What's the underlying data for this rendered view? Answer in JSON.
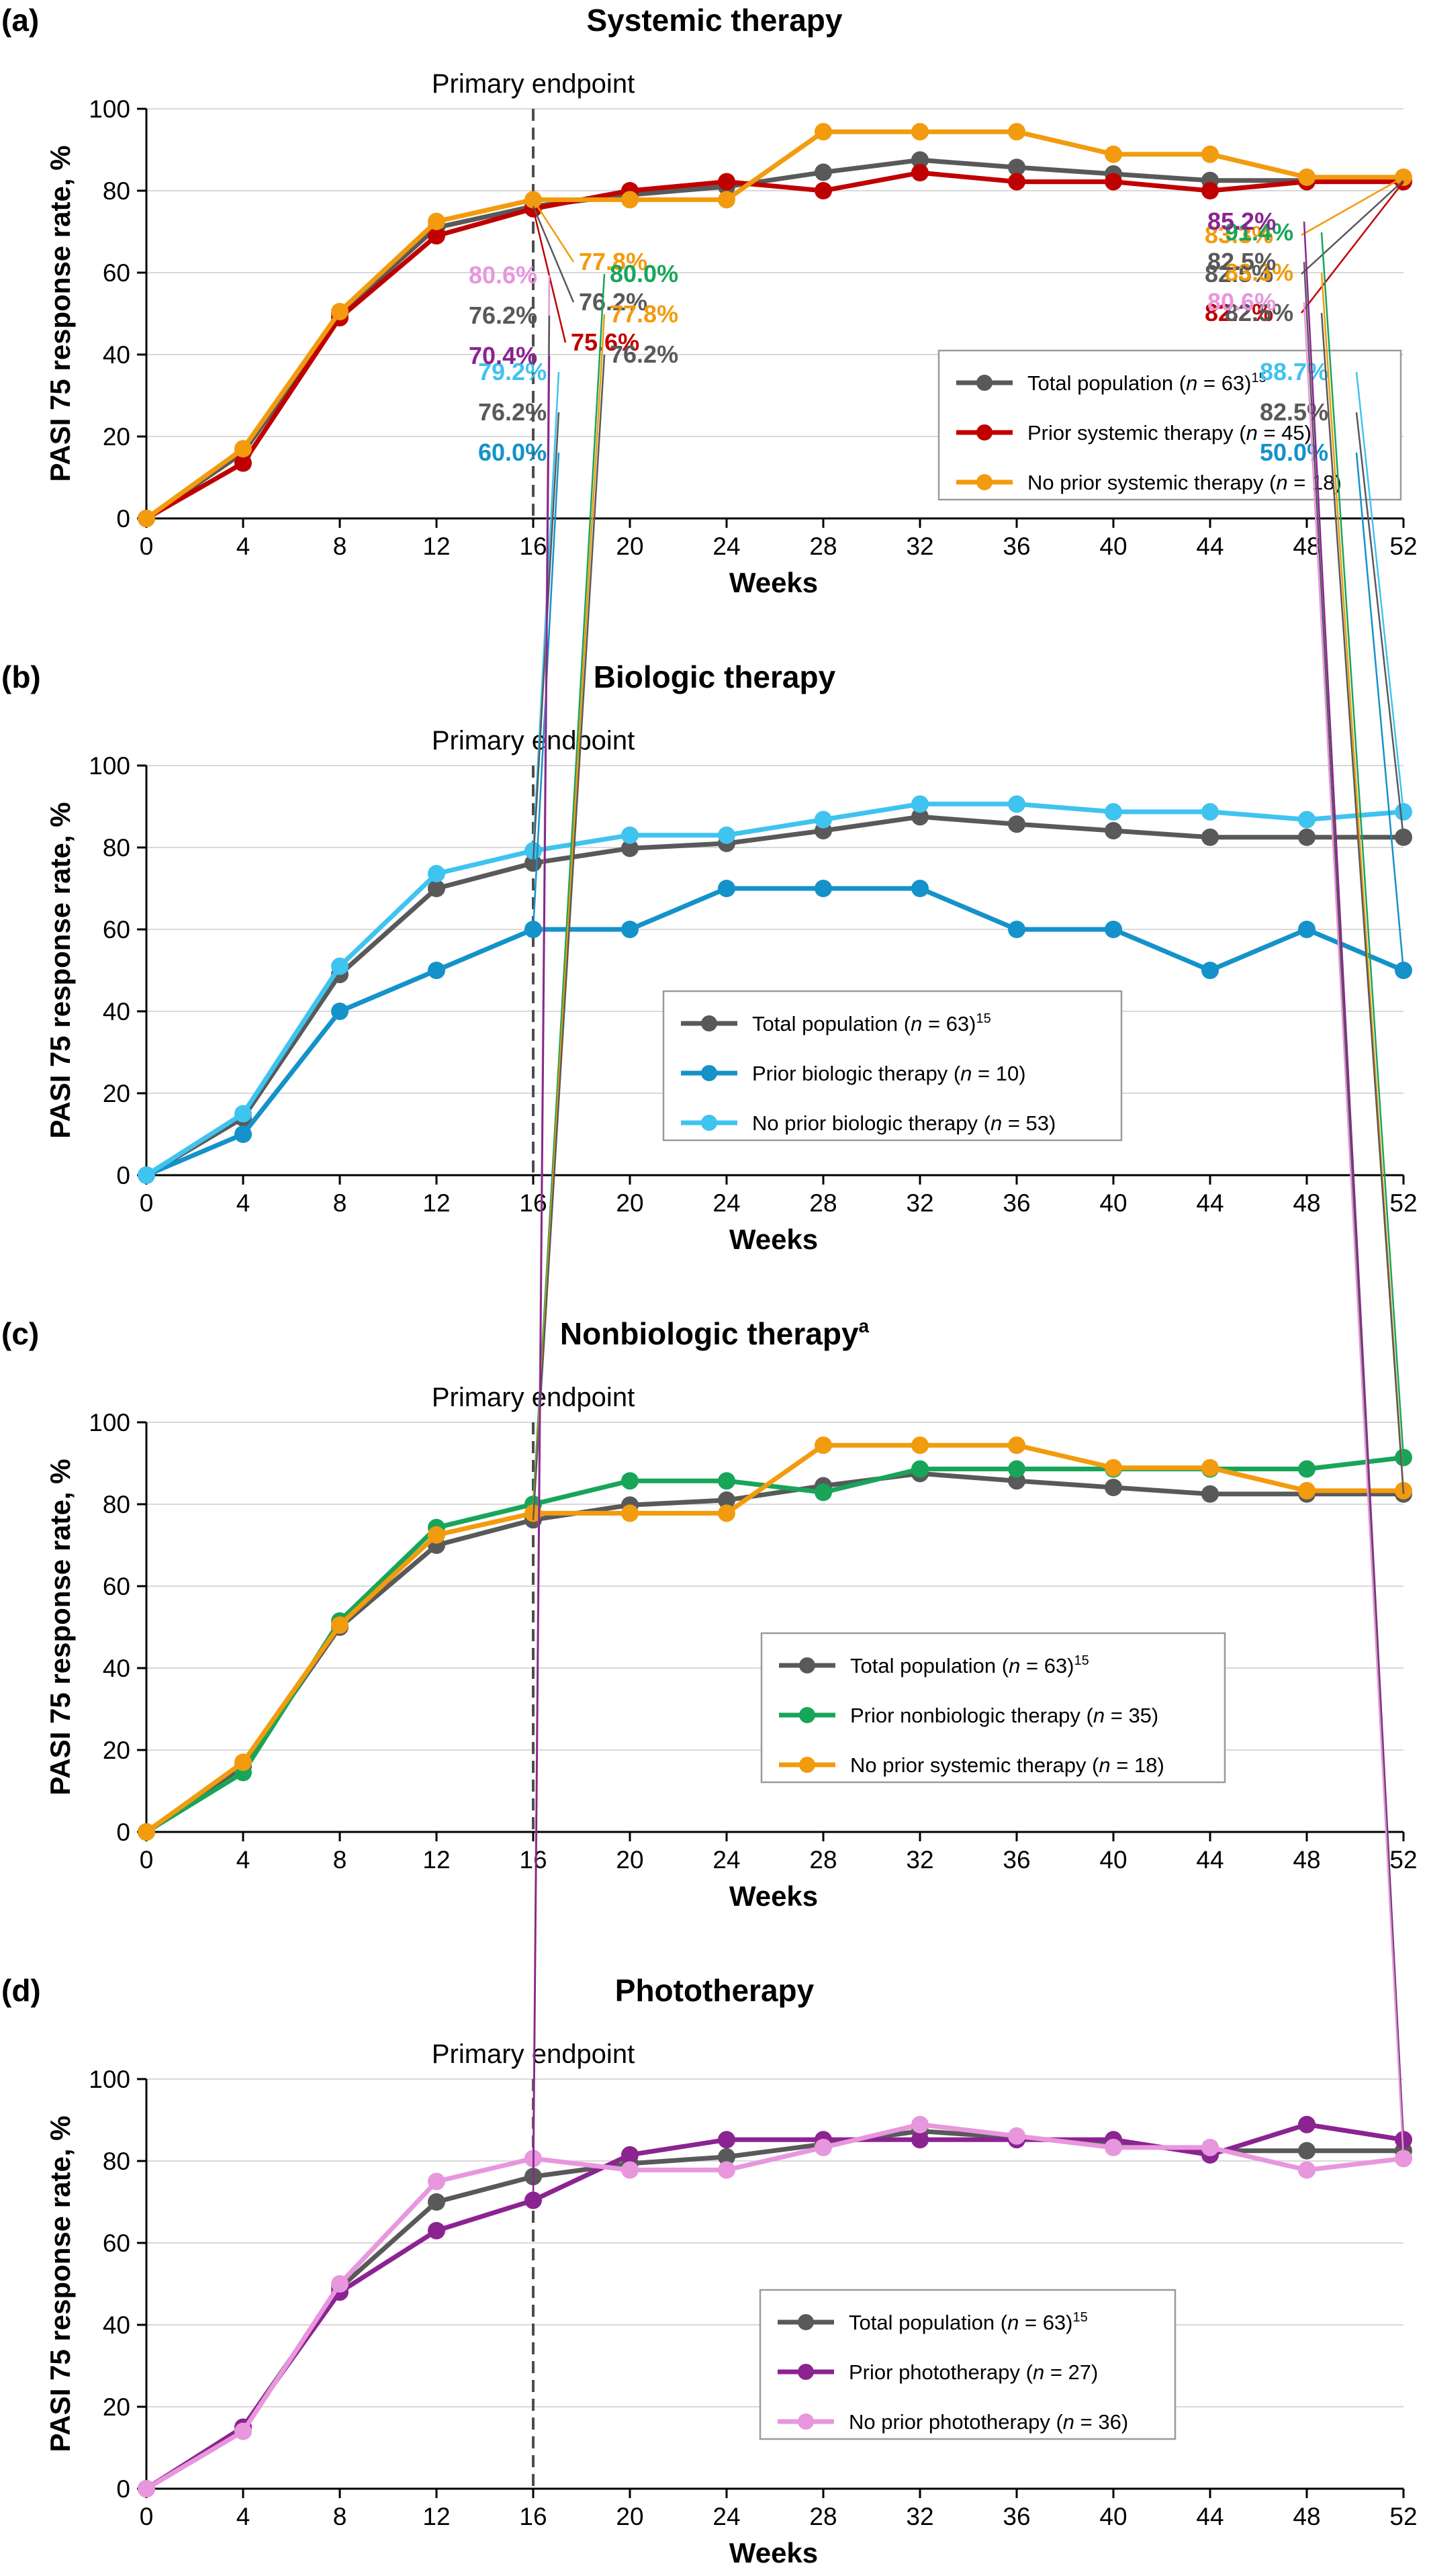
{
  "chart_data": [
    {
      "type": "line",
      "panel": "(a)",
      "title": "Systemic therapy",
      "title_sup": "",
      "xlabel": "Weeks",
      "ylabel": "PASI 75 response rate, %",
      "xlim": [
        0,
        52
      ],
      "ylim": [
        0,
        100
      ],
      "xticks": [
        "0",
        "4",
        "8",
        "12",
        "16",
        "20",
        "24",
        "28",
        "32",
        "36",
        "40",
        "44",
        "48",
        "52"
      ],
      "yticks": [
        "0",
        "20",
        "40",
        "60",
        "80",
        "100"
      ],
      "grid": "horizontal",
      "endpoint": {
        "week": 16,
        "label": "Primary endpoint"
      },
      "x": [
        0,
        4,
        8,
        12,
        16,
        20,
        24,
        28,
        32,
        36,
        40,
        44,
        48,
        52
      ],
      "series": [
        {
          "name_prefix": "Total population (",
          "name_n": "n",
          "name_suffix": " = 63)",
          "name_sup": "15",
          "color": "#595959",
          "values": [
            0,
            16,
            50,
            71,
            76.2,
            79,
            81,
            84.5,
            87.5,
            85.7,
            84.1,
            82.5,
            82.5,
            82.5
          ]
        },
        {
          "name_prefix": "Prior systemic therapy (",
          "name_n": "n",
          "name_suffix": " = 45)",
          "name_sup": "",
          "color": "#c00000",
          "values": [
            0,
            13.5,
            49,
            69,
            75.6,
            80,
            82.2,
            80,
            84.4,
            82.2,
            82.2,
            80,
            82.2,
            82.2
          ]
        },
        {
          "name_prefix": "No prior systemic therapy (",
          "name_n": "n",
          "name_suffix": " = 18)",
          "name_sup": "",
          "color": "#f29b0e",
          "values": [
            0,
            17,
            50.5,
            72.5,
            77.8,
            77.8,
            77.8,
            94.4,
            94.4,
            94.4,
            88.9,
            88.9,
            83.3,
            83.3
          ]
        }
      ],
      "callouts_16": [
        {
          "text": "77.8%",
          "color": "#f29b0e"
        },
        {
          "text": "76.2%",
          "color": "#595959"
        },
        {
          "text": "75.6%",
          "color": "#c00000"
        }
      ],
      "callouts_52": [
        {
          "text": "83.3%",
          "color": "#f29b0e"
        },
        {
          "text": "82.5%",
          "color": "#595959"
        },
        {
          "text": "82.2%",
          "color": "#c00000"
        }
      ]
    },
    {
      "type": "line",
      "panel": "(b)",
      "title": "Biologic therapy",
      "title_sup": "",
      "xlabel": "Weeks",
      "ylabel": "PASI 75 response rate, %",
      "xlim": [
        0,
        52
      ],
      "ylim": [
        0,
        100
      ],
      "xticks": [
        "0",
        "4",
        "8",
        "12",
        "16",
        "20",
        "24",
        "28",
        "32",
        "36",
        "40",
        "44",
        "48",
        "52"
      ],
      "yticks": [
        "0",
        "20",
        "40",
        "60",
        "80",
        "100"
      ],
      "grid": "horizontal",
      "endpoint": {
        "week": 16,
        "label": "Primary endpoint"
      },
      "x": [
        0,
        4,
        8,
        12,
        16,
        20,
        24,
        28,
        32,
        36,
        40,
        44,
        48,
        52
      ],
      "series": [
        {
          "name_prefix": "Total population (",
          "name_n": "n",
          "name_suffix": " = 63)",
          "name_sup": "15",
          "color": "#595959",
          "values": [
            0,
            14,
            49,
            70,
            76.2,
            79.8,
            81,
            84.1,
            87.5,
            85.7,
            84.1,
            82.5,
            82.5,
            82.5
          ]
        },
        {
          "name_prefix": "Prior biologic therapy (",
          "name_n": "n",
          "name_suffix": " = 10)",
          "name_sup": "",
          "color": "#1492c9",
          "values": [
            0,
            10,
            40,
            50,
            60,
            60,
            70,
            70,
            70,
            60,
            60,
            50,
            60,
            50
          ]
        },
        {
          "name_prefix": "No prior biologic therapy (",
          "name_n": "n",
          "name_suffix": " = 53)",
          "name_sup": "",
          "color": "#3fc3ef",
          "values": [
            0,
            15,
            51,
            73.6,
            79.2,
            83,
            83,
            86.8,
            90.6,
            90.6,
            88.7,
            88.7,
            86.8,
            88.7
          ]
        }
      ],
      "callouts_16": [
        {
          "text": "79.2%",
          "color": "#3fc3ef"
        },
        {
          "text": "76.2%",
          "color": "#595959"
        },
        {
          "text": "60.0%",
          "color": "#1492c9"
        }
      ],
      "callouts_52": [
        {
          "text": "88.7%",
          "color": "#3fc3ef"
        },
        {
          "text": "82.5%",
          "color": "#595959"
        },
        {
          "text": "50.0%",
          "color": "#1492c9"
        }
      ]
    },
    {
      "type": "line",
      "panel": "(c)",
      "title": "Nonbiologic therapy",
      "title_sup": "a",
      "xlabel": "Weeks",
      "ylabel": "PASI 75 response rate, %",
      "xlim": [
        0,
        52
      ],
      "ylim": [
        0,
        100
      ],
      "xticks": [
        "0",
        "4",
        "8",
        "12",
        "16",
        "20",
        "24",
        "28",
        "32",
        "36",
        "40",
        "44",
        "48",
        "52"
      ],
      "yticks": [
        "0",
        "20",
        "40",
        "60",
        "80",
        "100"
      ],
      "grid": "horizontal",
      "endpoint": {
        "week": 16,
        "label": "Primary endpoint"
      },
      "x": [
        0,
        4,
        8,
        12,
        16,
        20,
        24,
        28,
        32,
        36,
        40,
        44,
        48,
        52
      ],
      "series": [
        {
          "name_prefix": "Total population (",
          "name_n": "n",
          "name_suffix": " = 63)",
          "name_sup": "15",
          "color": "#595959",
          "values": [
            0,
            16,
            50,
            70,
            76.2,
            79.8,
            81,
            84.5,
            87.5,
            85.7,
            84.1,
            82.5,
            82.5,
            82.5
          ]
        },
        {
          "name_prefix": "Prior nonbiologic therapy (",
          "name_n": "n",
          "name_suffix": " = 35)",
          "name_sup": "",
          "color": "#18a55a",
          "values": [
            0,
            14.5,
            51.5,
            74.3,
            80,
            85.7,
            85.7,
            82.9,
            88.6,
            88.6,
            88.6,
            88.6,
            88.6,
            91.4
          ]
        },
        {
          "name_prefix": "No prior systemic therapy (",
          "name_n": "n",
          "name_suffix": " = 18)",
          "name_sup": "",
          "color": "#f29b0e",
          "values": [
            0,
            17,
            50.5,
            72.5,
            77.8,
            77.8,
            77.8,
            94.4,
            94.4,
            94.4,
            88.9,
            88.9,
            83.3,
            83.3
          ]
        }
      ],
      "callouts_16": [
        {
          "text": "80.0%",
          "color": "#18a55a"
        },
        {
          "text": "77.8%",
          "color": "#f29b0e"
        },
        {
          "text": "76.2%",
          "color": "#595959"
        }
      ],
      "callouts_52": [
        {
          "text": "91.4%",
          "color": "#18a55a"
        },
        {
          "text": "83.3%",
          "color": "#f29b0e"
        },
        {
          "text": "82.5%",
          "color": "#595959"
        }
      ]
    },
    {
      "type": "line",
      "panel": "(d)",
      "title": "Phototherapy",
      "title_sup": "",
      "xlabel": "Weeks",
      "ylabel": "PASI 75 response rate, %",
      "xlim": [
        0,
        52
      ],
      "ylim": [
        0,
        100
      ],
      "xticks": [
        "0",
        "4",
        "8",
        "12",
        "16",
        "20",
        "24",
        "28",
        "32",
        "36",
        "40",
        "44",
        "48",
        "52"
      ],
      "yticks": [
        "0",
        "20",
        "40",
        "60",
        "80",
        "100"
      ],
      "grid": "horizontal",
      "endpoint": {
        "week": 16,
        "label": "Primary endpoint"
      },
      "x": [
        0,
        4,
        8,
        12,
        16,
        20,
        24,
        28,
        32,
        36,
        40,
        44,
        48,
        52
      ],
      "series": [
        {
          "name_prefix": "Total population (",
          "name_n": "n",
          "name_suffix": " = 63)",
          "name_sup": "15",
          "color": "#595959",
          "values": [
            0,
            15,
            49,
            70,
            76.2,
            79.4,
            81,
            84.1,
            87.3,
            85.7,
            84.1,
            82.5,
            82.5,
            82.5
          ]
        },
        {
          "name_prefix": "Prior phototherapy (",
          "name_n": "n",
          "name_suffix": " = 27)",
          "name_sup": "",
          "color": "#8b2391",
          "values": [
            0,
            15,
            48,
            63,
            70.4,
            81.5,
            85.2,
            85.2,
            85.2,
            85.2,
            85.2,
            81.5,
            88.9,
            85.2
          ]
        },
        {
          "name_prefix": "No prior phototherapy (",
          "name_n": "n",
          "name_suffix": " = 36)",
          "name_sup": "",
          "color": "#e896de",
          "values": [
            0,
            14,
            50,
            75,
            80.6,
            77.8,
            77.8,
            83.3,
            88.9,
            86.1,
            83.3,
            83.3,
            77.8,
            80.6
          ]
        }
      ],
      "callouts_16": [
        {
          "text": "80.6%",
          "color": "#e896de"
        },
        {
          "text": "76.2%",
          "color": "#595959"
        },
        {
          "text": "70.4%",
          "color": "#8b2391"
        }
      ],
      "callouts_52": [
        {
          "text": "85.2%",
          "color": "#8b2391"
        },
        {
          "text": "82.5%",
          "color": "#595959"
        },
        {
          "text": "80.6%",
          "color": "#e896de"
        }
      ]
    }
  ]
}
